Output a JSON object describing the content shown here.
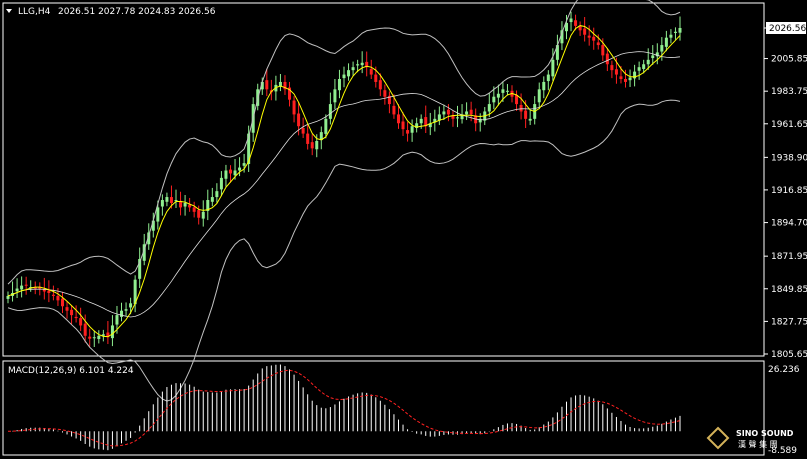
{
  "header": {
    "symbol": "LLG,H4",
    "ohlc": "2026.51 2027.78 2024.83 2026.56",
    "arrow": "triangle-down-icon"
  },
  "price_axis": {
    "labels": [
      "2026.56",
      "2005.85",
      "1983.75",
      "1961.65",
      "1938.90",
      "1916.85",
      "1894.70",
      "1871.95",
      "1849.85",
      "1827.75",
      "1805.65"
    ],
    "current_price": "2026.56"
  },
  "macd_panel": {
    "title": "MACD(12,26,9) 6.101 4.224",
    "axis_top": "26.236",
    "axis_bottom": "-8.589"
  },
  "logo": {
    "line1": "SINO SOUND",
    "line2": "漢 聲 集 團"
  },
  "colors": {
    "background": "#000000",
    "bull_candle": "#90ee90",
    "bear_candle": "#ff2020",
    "ma_line": "#ffff00",
    "band_line": "#c0c0c0",
    "macd_hist": "#ffffff",
    "macd_signal": "#ff2020",
    "axis": "#ffffff"
  },
  "chart_data": [
    {
      "type": "candlestick",
      "title": "LLG,H4",
      "ylim": [
        1805.65,
        2026.56
      ],
      "ma_line": "yellow",
      "bands": "bollinger",
      "closes": [
        1845,
        1847,
        1850,
        1852,
        1852,
        1851,
        1850,
        1850,
        1848,
        1847,
        1845,
        1842,
        1838,
        1835,
        1832,
        1830,
        1825,
        1818,
        1816,
        1817,
        1818,
        1819,
        1817,
        1825,
        1832,
        1835,
        1836,
        1840,
        1856,
        1870,
        1880,
        1888,
        1896,
        1905,
        1910,
        1912,
        1908,
        1910,
        1905,
        1908,
        1905,
        1902,
        1898,
        1902,
        1910,
        1912,
        1916,
        1925,
        1930,
        1928,
        1930,
        1932,
        1935,
        1955,
        1975,
        1985,
        1990,
        1985,
        1983,
        1988,
        1990,
        1985,
        1978,
        1968,
        1960,
        1955,
        1948,
        1945,
        1950,
        1956,
        1965,
        1975,
        1985,
        1992,
        1995,
        1998,
        2000,
        2002,
        2003,
        2000,
        1995,
        1990,
        1985,
        1980,
        1975,
        1968,
        1962,
        1958,
        1955,
        1960,
        1962,
        1965,
        1960,
        1962,
        1965,
        1968,
        1970,
        1968,
        1965,
        1966,
        1968,
        1970,
        1968,
        1962,
        1965,
        1970,
        1975,
        1980,
        1982,
        1985,
        1984,
        1980,
        1975,
        1970,
        1965,
        1965,
        1975,
        1985,
        1990,
        1995,
        2005,
        2015,
        2025,
        2030,
        2033,
        2028,
        2025,
        2022,
        2020,
        2018,
        2015,
        2008,
        2002,
        1998,
        1995,
        1992,
        1990,
        1993,
        1997,
        2000,
        2002,
        2005,
        2008,
        2010,
        2015,
        2020,
        2022,
        2024,
        2026.56
      ],
      "macd_signal_note": "MACD(12,26,9)",
      "macd_value": 6.101,
      "macd_signal": 4.224,
      "macd_ylim": [
        -8.589,
        26.236
      ]
    }
  ]
}
